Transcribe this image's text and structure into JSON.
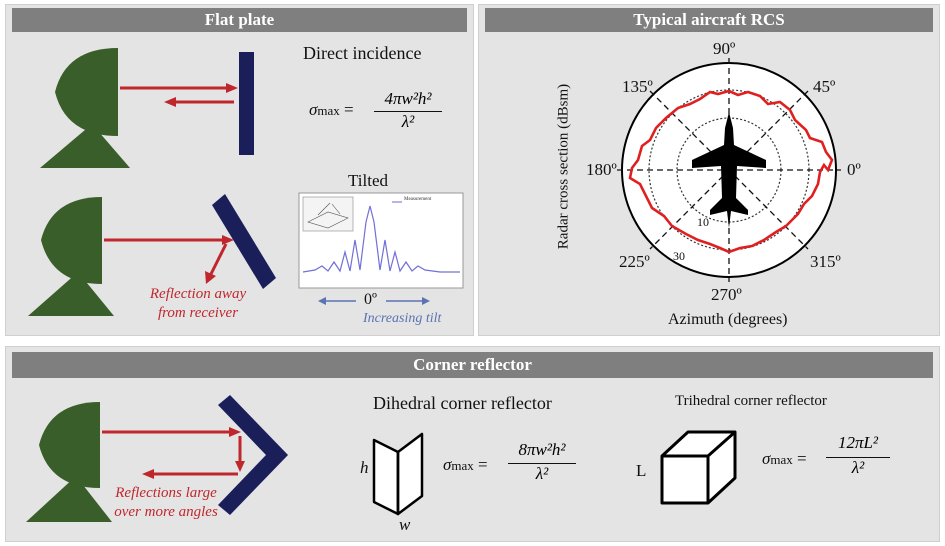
{
  "flat_plate": {
    "title": "Flat plate",
    "direct_incidence": "Direct incidence",
    "tilted": "Tilted",
    "reflection_away": "Reflection away",
    "from_receiver": "from receiver",
    "zero_deg": "0º",
    "increasing_tilt": "Increasing tilt",
    "legend_measurement": "Measurement",
    "formula": {
      "sigma": "σ",
      "sub": "max",
      "eq": "=",
      "num": "4πw²h²",
      "den": "λ²"
    }
  },
  "rcs": {
    "title": "Typical aircraft RCS",
    "ylabel": "Radar cross section (dBsm)",
    "xlabel": "Azimuth (degrees)",
    "angle_labels": [
      "0º",
      "45º",
      "90º",
      "135º",
      "180º",
      "225º",
      "270º",
      "315º"
    ],
    "ring_labels": [
      "10",
      "30"
    ]
  },
  "corner": {
    "title": "Corner reflector",
    "reflections_large": "Reflections large",
    "over_more_angles": "over more angles",
    "dihedral_title": "Dihedral corner reflector",
    "trihedral_title": "Trihedral corner reflector",
    "dihedral_h": "h",
    "dihedral_w": "w",
    "trihedral_L": "L",
    "dihedral_formula": {
      "sigma": "σ",
      "sub": "max",
      "eq": "=",
      "num": "8πw²h²",
      "den": "λ²"
    },
    "trihedral_formula": {
      "sigma": "σ",
      "sub": "max",
      "eq": "=",
      "num": "12πL²",
      "den": "λ²"
    }
  },
  "colors": {
    "radar_green": "#3a5e2a",
    "plate_navy": "#1a1f5a",
    "arrow_red": "#c0272d",
    "blue_text": "#5a73b3"
  }
}
